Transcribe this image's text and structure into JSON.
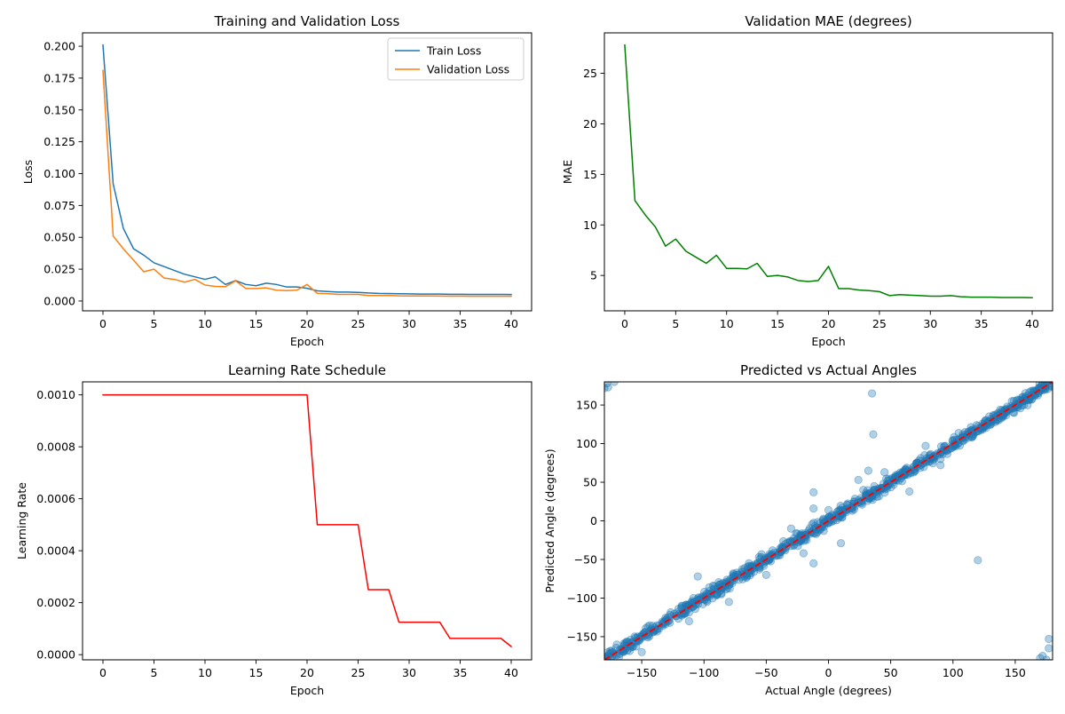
{
  "chart_data": [
    {
      "id": "loss",
      "type": "line",
      "title": "Training and Validation Loss",
      "xlabel": "Epoch",
      "ylabel": "Loss",
      "xlim": [
        -2,
        42
      ],
      "ylim": [
        -0.0077,
        0.2105
      ],
      "xticks": [
        0,
        5,
        10,
        15,
        20,
        25,
        30,
        35,
        40
      ],
      "xtick_labels": [
        "0",
        "5",
        "10",
        "15",
        "20",
        "25",
        "30",
        "35",
        "40"
      ],
      "yticks": [
        0,
        0.025,
        0.05,
        0.075,
        0.1,
        0.125,
        0.15,
        0.175,
        0.2
      ],
      "ytick_labels": [
        "0.000",
        "0.025",
        "0.050",
        "0.075",
        "0.100",
        "0.125",
        "0.150",
        "0.175",
        "0.200"
      ],
      "grid": false,
      "legend_position": "upper right",
      "x": [
        0,
        1,
        2,
        3,
        4,
        5,
        6,
        7,
        8,
        9,
        10,
        11,
        12,
        13,
        14,
        15,
        16,
        17,
        18,
        19,
        20,
        21,
        22,
        23,
        24,
        25,
        26,
        27,
        28,
        29,
        30,
        31,
        32,
        33,
        34,
        35,
        36,
        37,
        38,
        39,
        40
      ],
      "series": [
        {
          "name": "Train Loss",
          "color": "#1f77b4",
          "values": [
            0.201,
            0.092,
            0.057,
            0.041,
            0.036,
            0.03,
            0.027,
            0.024,
            0.021,
            0.019,
            0.017,
            0.019,
            0.013,
            0.016,
            0.013,
            0.012,
            0.014,
            0.013,
            0.011,
            0.011,
            0.01,
            0.008,
            0.0075,
            0.007,
            0.007,
            0.0068,
            0.0063,
            0.006,
            0.0059,
            0.0057,
            0.0056,
            0.0055,
            0.0055,
            0.0055,
            0.0053,
            0.0053,
            0.0052,
            0.0052,
            0.0052,
            0.0052,
            0.0051
          ]
        },
        {
          "name": "Validation Loss",
          "color": "#ff7f0e",
          "values": [
            0.181,
            0.051,
            0.041,
            0.032,
            0.023,
            0.025,
            0.018,
            0.017,
            0.0148,
            0.017,
            0.0125,
            0.0115,
            0.0112,
            0.0158,
            0.0098,
            0.0098,
            0.0103,
            0.0085,
            0.0082,
            0.0085,
            0.013,
            0.006,
            0.0058,
            0.0052,
            0.0052,
            0.0052,
            0.0043,
            0.0043,
            0.0044,
            0.0041,
            0.004,
            0.004,
            0.004,
            0.0039,
            0.0038,
            0.0038,
            0.0037,
            0.0037,
            0.0037,
            0.0037,
            0.0037
          ]
        }
      ]
    },
    {
      "id": "mae",
      "type": "line",
      "title": "Validation MAE (degrees)",
      "xlabel": "Epoch",
      "ylabel": "MAE",
      "xlim": [
        -2,
        42
      ],
      "ylim": [
        1.5,
        29.0
      ],
      "xticks": [
        0,
        5,
        10,
        15,
        20,
        25,
        30,
        35,
        40
      ],
      "xtick_labels": [
        "0",
        "5",
        "10",
        "15",
        "20",
        "25",
        "30",
        "35",
        "40"
      ],
      "yticks": [
        5,
        10,
        15,
        20,
        25
      ],
      "ytick_labels": [
        "5",
        "10",
        "15",
        "20",
        "25"
      ],
      "grid": false,
      "x": [
        0,
        1,
        2,
        3,
        4,
        5,
        6,
        7,
        8,
        9,
        10,
        11,
        12,
        13,
        14,
        15,
        16,
        17,
        18,
        19,
        20,
        21,
        22,
        23,
        24,
        25,
        26,
        27,
        28,
        29,
        30,
        31,
        32,
        33,
        34,
        35,
        36,
        37,
        38,
        39,
        40
      ],
      "series": [
        {
          "color": "#008000",
          "values": [
            27.8,
            12.4,
            11.0,
            9.8,
            7.9,
            8.6,
            7.4,
            6.8,
            6.2,
            7.0,
            5.7,
            5.7,
            5.65,
            6.2,
            4.9,
            5.0,
            4.85,
            4.5,
            4.4,
            4.5,
            5.9,
            3.7,
            3.7,
            3.55,
            3.5,
            3.4,
            3.0,
            3.1,
            3.05,
            3.0,
            2.95,
            2.95,
            3.0,
            2.9,
            2.85,
            2.85,
            2.85,
            2.82,
            2.82,
            2.82,
            2.8
          ]
        }
      ]
    },
    {
      "id": "lr",
      "type": "line",
      "title": "Learning Rate Schedule",
      "xlabel": "Epoch",
      "ylabel": "Learning Rate",
      "xlim": [
        -2,
        42
      ],
      "ylim": [
        -2e-05,
        0.00105
      ],
      "xticks": [
        0,
        5,
        10,
        15,
        20,
        25,
        30,
        35,
        40
      ],
      "xtick_labels": [
        "0",
        "5",
        "10",
        "15",
        "20",
        "25",
        "30",
        "35",
        "40"
      ],
      "yticks": [
        0,
        0.0002,
        0.0004,
        0.0006,
        0.0008,
        0.001
      ],
      "ytick_labels": [
        "0.0000",
        "0.0002",
        "0.0004",
        "0.0006",
        "0.0008",
        "0.0010"
      ],
      "grid": false,
      "x": [
        0,
        1,
        2,
        3,
        4,
        5,
        6,
        7,
        8,
        9,
        10,
        11,
        12,
        13,
        14,
        15,
        16,
        17,
        18,
        19,
        20,
        21,
        22,
        23,
        24,
        25,
        26,
        27,
        28,
        29,
        30,
        31,
        32,
        33,
        34,
        35,
        36,
        37,
        38,
        39,
        40
      ],
      "series": [
        {
          "color": "#ff0000",
          "values": [
            0.001,
            0.001,
            0.001,
            0.001,
            0.001,
            0.001,
            0.001,
            0.001,
            0.001,
            0.001,
            0.001,
            0.001,
            0.001,
            0.001,
            0.001,
            0.001,
            0.001,
            0.001,
            0.001,
            0.001,
            0.001,
            0.0005,
            0.0005,
            0.0005,
            0.0005,
            0.0005,
            0.00025,
            0.00025,
            0.00025,
            0.000125,
            0.000125,
            0.000125,
            0.000125,
            0.000125,
            6.25e-05,
            6.25e-05,
            6.25e-05,
            6.25e-05,
            6.25e-05,
            6.25e-05,
            3.125e-05
          ]
        }
      ]
    },
    {
      "id": "pred",
      "type": "scatter",
      "title": "Predicted vs Actual Angles",
      "xlabel": "Actual Angle (degrees)",
      "ylabel": "Predicted Angle (degrees)",
      "xlim": [
        -180,
        180
      ],
      "ylim": [
        -180,
        180
      ],
      "xticks": [
        -150,
        -100,
        -50,
        0,
        50,
        100,
        150
      ],
      "xtick_labels": [
        "−150",
        "−100",
        "−50",
        "0",
        "50",
        "100",
        "150"
      ],
      "yticks": [
        -150,
        -100,
        -50,
        0,
        50,
        100,
        150
      ],
      "ytick_labels": [
        "−150",
        "−100",
        "−50",
        "0",
        "50",
        "100",
        "150"
      ],
      "grid": false,
      "point_color": "#1f77b4",
      "point_alpha": 0.35,
      "reference_line": {
        "color": "#ff0000",
        "style": "dashed",
        "from": [
          -180,
          -180
        ],
        "to": [
          180,
          180
        ]
      },
      "outliers": [
        [
          35,
          165
        ],
        [
          36,
          112
        ],
        [
          -12,
          37
        ],
        [
          -12,
          16
        ],
        [
          -12,
          -55
        ],
        [
          10,
          -29
        ],
        [
          120,
          -51
        ],
        [
          -105,
          -72
        ],
        [
          -80,
          -105
        ],
        [
          -150,
          -170
        ],
        [
          32,
          65
        ],
        [
          65,
          38
        ],
        [
          24,
          53
        ],
        [
          78,
          97
        ],
        [
          45,
          63
        ],
        [
          -112,
          -130
        ],
        [
          0,
          14
        ],
        [
          177,
          -153
        ],
        [
          177,
          -165
        ],
        [
          172,
          -175
        ],
        [
          175,
          -180
        ],
        [
          170,
          -178
        ],
        [
          -178,
          178
        ],
        [
          -177,
          173
        ],
        [
          -172,
          180
        ],
        [
          -180,
          172
        ],
        [
          28,
          40
        ],
        [
          -30,
          -10
        ],
        [
          52,
          50
        ],
        [
          -50,
          -70
        ],
        [
          90,
          72
        ],
        [
          -20,
          -42
        ]
      ]
    }
  ]
}
